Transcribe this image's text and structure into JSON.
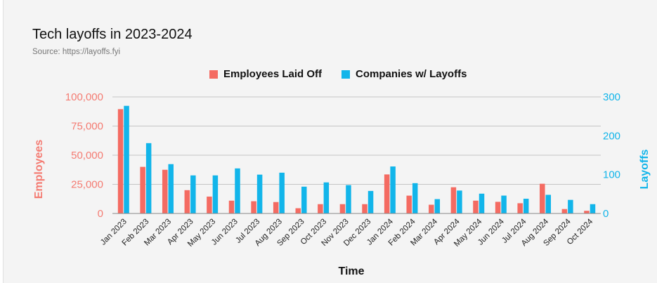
{
  "header": {
    "title": "Tech layoffs in 2023-2024",
    "subtitle": "Source: https://layoffs.fyi"
  },
  "colors": {
    "employees": "#f46b62",
    "companies": "#12b5ea",
    "grid": "#c4c4c4",
    "left_axis": "#f47b72",
    "right_axis": "#12b5ea"
  },
  "chart_data": {
    "type": "bar",
    "title": "Tech layoffs in 2023-2024",
    "xlabel": "Time",
    "ylabel": "Employees",
    "y2label": "Layoffs",
    "legend_position": "top-center",
    "grid": true,
    "categories": [
      "Jan 2023",
      "Feb 2023",
      "Mar 2023",
      "Apr 2023",
      "May 2023",
      "Jun 2023",
      "Jul 2023",
      "Aug 2023",
      "Sep 2023",
      "Oct 2023",
      "Nov 2023",
      "Dec 2023",
      "Jan 2024",
      "Feb 2024",
      "Mar 2024",
      "Apr 2024",
      "May 2024",
      "Jun 2024",
      "Jul 2024",
      "Aug 2024",
      "Sep 2024",
      "Oct 2024"
    ],
    "ylim": [
      0,
      100000
    ],
    "y2lim": [
      0,
      300
    ],
    "yticks": [
      "0",
      "25,000",
      "50,000",
      "75,000",
      "100,000"
    ],
    "y2ticks": [
      "0",
      "100",
      "200",
      "300"
    ],
    "series": [
      {
        "name": "Employees Laid Off",
        "axis": "left",
        "values": [
          89500,
          40000,
          37500,
          20000,
          14500,
          11000,
          10500,
          9800,
          4500,
          8000,
          8000,
          8000,
          33500,
          15300,
          7500,
          22500,
          11000,
          10000,
          8800,
          25500,
          3800,
          2300
        ]
      },
      {
        "name": "Companies w/ Layoffs",
        "axis": "right",
        "values": [
          277,
          181,
          127,
          98,
          98,
          116,
          100,
          105,
          69,
          80,
          73,
          58,
          121,
          78,
          37,
          59,
          51,
          46,
          38,
          48,
          35,
          24
        ]
      }
    ]
  }
}
